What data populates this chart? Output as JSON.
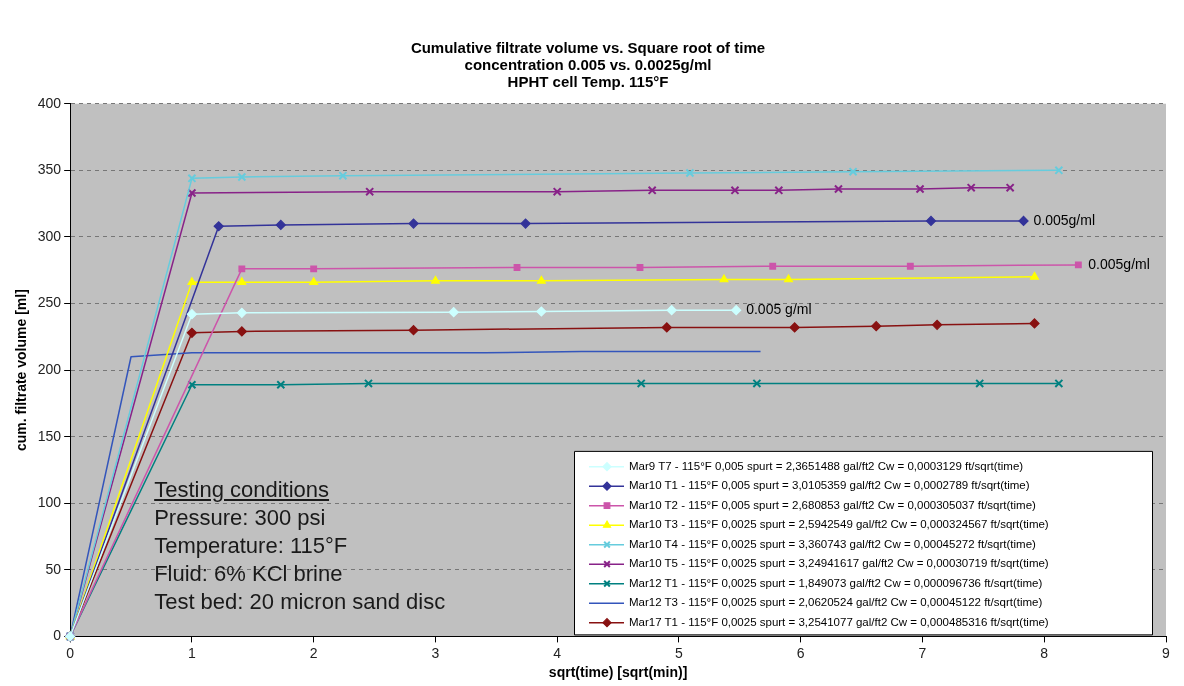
{
  "chart_data": {
    "type": "line",
    "title": [
      "Cumulative filtrate volume vs. Square root of time",
      "concentration 0.005 vs. 0.0025g/ml",
      "HPHT cell Temp. 115°F"
    ],
    "xlabel": "sqrt(time) [sqrt(min)]",
    "ylabel": "cum. filtrate volume [ml]",
    "xlim": [
      0,
      9
    ],
    "xticks": [
      0,
      1,
      2,
      3,
      4,
      5,
      6,
      7,
      8,
      9
    ],
    "ylim": [
      0,
      400
    ],
    "yticks": [
      0,
      50,
      100,
      150,
      200,
      250,
      300,
      350,
      400
    ],
    "grid": "y",
    "legend": "bottom right",
    "line_style": "solid",
    "series": [
      {
        "name": "Mar9 T7 - 115°F 0,005 spurt = 2,3651488 gal/ft2 Cw = 0,0003129 ft/sqrt(time)",
        "color": "#ccffff",
        "marker": "diamond",
        "x": [
          0,
          1,
          1.41,
          3.15,
          3.87,
          4.94,
          5.47
        ],
        "values": [
          0,
          242,
          243,
          243.5,
          244,
          245,
          245
        ]
      },
      {
        "name": "Mar10 T1 - 115°F 0,005 spurt = 3,0105359 gal/ft2 Cw = 0,0002789 ft/sqrt(time)",
        "color": "#333399",
        "marker": "diamond",
        "x": [
          0,
          1.22,
          1.73,
          2.82,
          3.74,
          7.07,
          7.83
        ],
        "values": [
          0,
          308,
          309,
          310,
          310,
          312,
          312
        ]
      },
      {
        "name": "Mar10 T2 - 115°F 0,005 spurt = 2,680853 gal/ft2 Cw = 0,000305037 ft/sqrt(time)",
        "color": "#cc55aa",
        "marker": "square",
        "x": [
          0,
          1.41,
          2,
          3.67,
          4.68,
          5.77,
          6.9,
          8.28
        ],
        "values": [
          0,
          276,
          276,
          277,
          277,
          278,
          278,
          279
        ]
      },
      {
        "name": "Mar10 T3 - 115°F 0,0025 spurt = 2,5942549 gal/ft2 Cw = 0,000324567 ft/sqrt(time)",
        "color": "#ffff00",
        "marker": "triangle",
        "x": [
          0,
          1,
          1.41,
          2,
          3,
          3.87,
          5.37,
          5.9,
          7.92
        ],
        "values": [
          0,
          266,
          266,
          266,
          267,
          267,
          268,
          268,
          270
        ]
      },
      {
        "name": "Mar10 T4 - 115°F 0,0025 spurt = 3,360743 gal/ft2 Cw = 0,00045272 ft/sqrt(time)",
        "color": "#66ccdd",
        "marker": "cross",
        "x": [
          0,
          1,
          1.41,
          2.24,
          5.09,
          6.43,
          8.12
        ],
        "values": [
          0,
          344,
          345,
          346,
          348,
          349,
          350
        ]
      },
      {
        "name": "Mar10 T5 - 115°F 0,0025 spurt = 3,24941617 gal/ft2 Cw = 0,00030719 ft/sqrt(time)",
        "color": "#882288",
        "marker": "cross",
        "x": [
          0,
          1,
          2.46,
          4,
          4.78,
          5.46,
          5.82,
          6.31,
          6.98,
          7.4,
          7.72
        ],
        "values": [
          0,
          333,
          334,
          334,
          335,
          335,
          335,
          336,
          336,
          337,
          337
        ]
      },
      {
        "name": "Mar12 T1 - 115°F 0,0025 spurt = 1,849073 gal/ft2 Cw = 0,000096736 ft/sqrt(time)",
        "color": "#008080",
        "marker": "cross",
        "x": [
          0,
          1,
          1.73,
          2.45,
          4.69,
          5.64,
          7.47,
          8.12
        ],
        "values": [
          0,
          189,
          189,
          190,
          190,
          190,
          190,
          190
        ]
      },
      {
        "name": "Mar12 T3 - 115°F 0,0025 spurt = 2,0620524 gal/ft2 Cw = 0,00045122 ft/sqrt(time)",
        "color": "#3355bb",
        "marker": "none",
        "x": [
          0,
          0.5,
          1,
          3.18,
          3.41,
          4.2,
          5.67
        ],
        "values": [
          0,
          210,
          213,
          213,
          213,
          214,
          214
        ]
      },
      {
        "name": "Mar17 T1 - 115°F 0,0025 spurt = 3,2541077 gal/ft2 Cw = 0,000485316 ft/sqrt(time)",
        "color": "#881111",
        "marker": "diamond",
        "x": [
          0,
          1,
          1.41,
          2.82,
          4.9,
          5.95,
          6.62,
          7.12,
          7.92
        ],
        "values": [
          0,
          228,
          229,
          230,
          232,
          232,
          233,
          234,
          235
        ]
      }
    ],
    "annotations": [
      {
        "text": "0.005 g/ml",
        "x": 5.47,
        "y": 245
      },
      {
        "text": "0.005g/ml",
        "x": 7.83,
        "y": 312
      },
      {
        "text": "0.005g/ml",
        "x": 8.28,
        "y": 279
      },
      "Testing conditions",
      "Pressure: 300 psi",
      "Temperature: 115°F",
      "Fluid: 6% KCl brine",
      "Test bed: 20 micron sand disc"
    ]
  }
}
